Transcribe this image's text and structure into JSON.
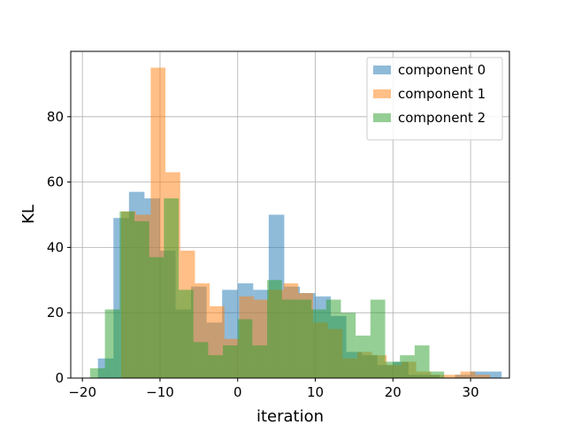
{
  "chart_data": {
    "type": "histogram",
    "title": "",
    "xlabel": "iteration",
    "ylabel": "KL",
    "xlim": [
      -21.5,
      35
    ],
    "ylim": [
      0,
      100
    ],
    "x_ticks": [
      -20,
      -10,
      0,
      10,
      20,
      30
    ],
    "y_ticks": [
      0,
      20,
      40,
      60,
      80
    ],
    "x_tick_labels": [
      "−20",
      "−10",
      "0",
      "10",
      "20",
      "30"
    ],
    "y_tick_labels": [
      "0",
      "20",
      "40",
      "60",
      "80"
    ],
    "grid": true,
    "legend_position": "top-right",
    "alpha": 0.5,
    "series": [
      {
        "name": "component 0",
        "color": "#1f77b4",
        "bin_start": -18,
        "bin_width": 2.0,
        "counts": [
          6,
          49,
          57,
          55,
          39,
          21,
          28,
          17,
          27,
          29,
          27,
          50,
          28,
          26,
          25,
          19,
          8,
          7,
          4,
          5,
          1,
          1,
          0,
          1,
          2,
          2
        ]
      },
      {
        "name": "component 1",
        "color": "#ff7f0e",
        "bin_start": -15,
        "bin_width": 1.9,
        "counts": [
          51,
          50,
          95,
          63,
          39,
          29,
          22,
          12,
          25,
          24,
          27,
          29,
          26,
          17,
          15,
          6,
          8,
          7,
          4,
          5,
          2,
          1,
          1,
          2,
          1
        ]
      },
      {
        "name": "component 2",
        "color": "#2ca02c",
        "bin_start": -19,
        "bin_width": 1.9,
        "counts": [
          3,
          21,
          51,
          48,
          37,
          55,
          27,
          11,
          7,
          10,
          18,
          10,
          30,
          24,
          24,
          21,
          24,
          20,
          13,
          24,
          5,
          7,
          10,
          2
        ]
      }
    ]
  }
}
